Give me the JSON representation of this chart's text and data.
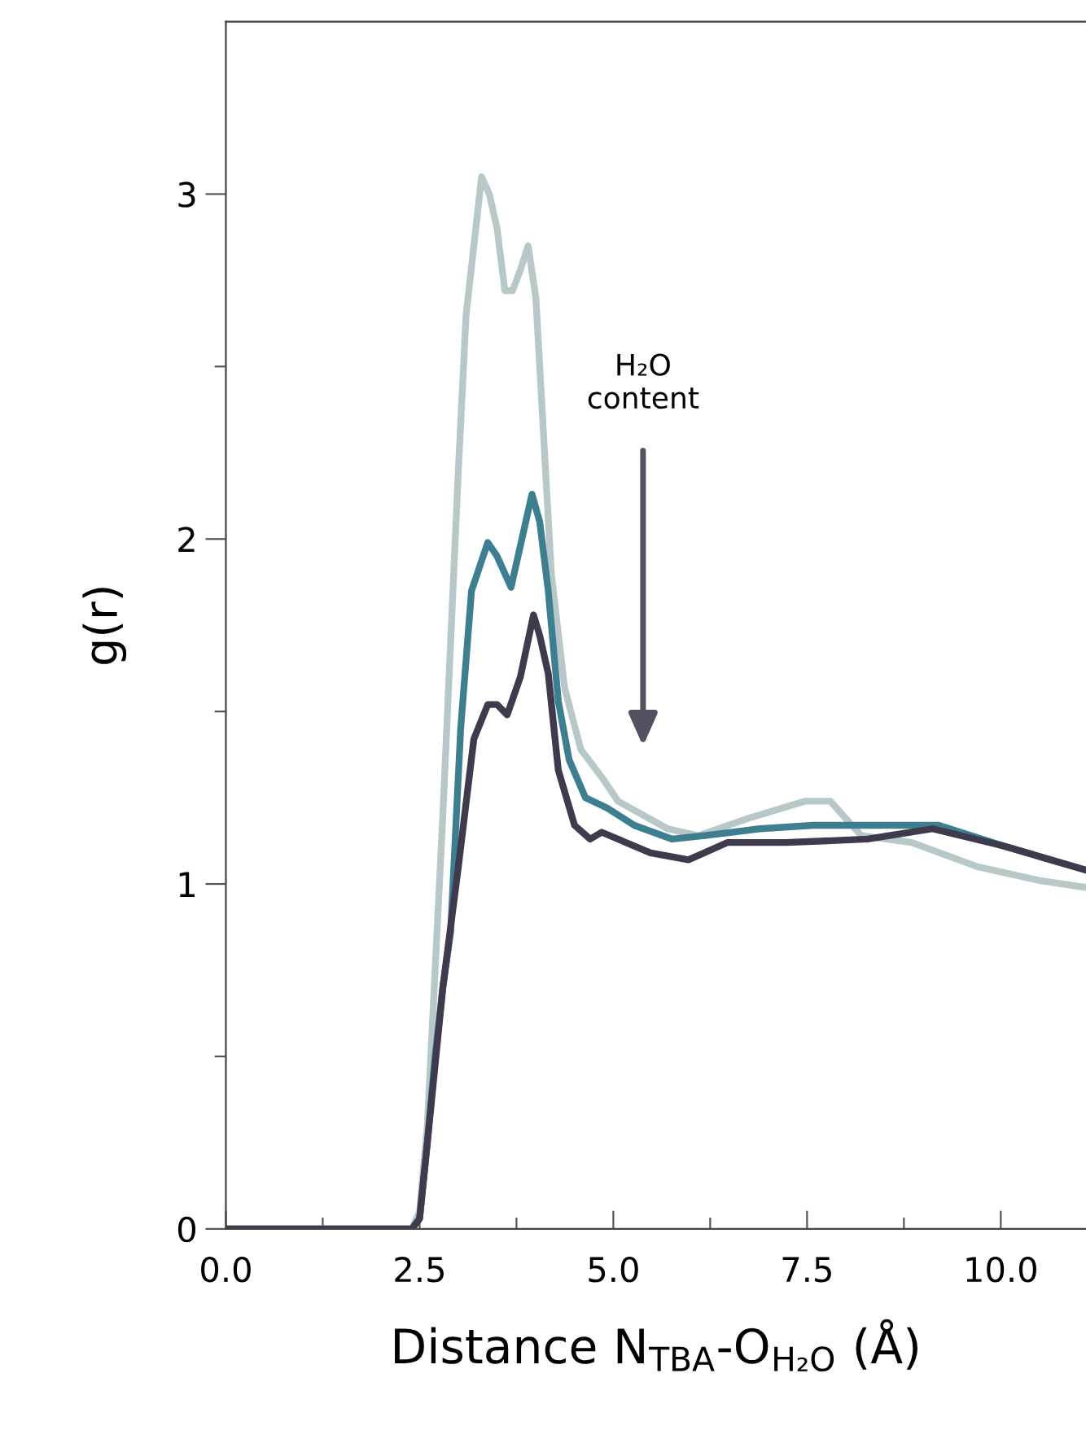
{
  "chart_data": {
    "type": "line",
    "xlabel": "Distance N$_{TBA}$-O$_{H₂O}$ (Å)",
    "ylabel": "g(r)",
    "annotations": [
      "H₂O\ncontent"
    ],
    "xlim": [
      0,
      11.1
    ],
    "ylim": [
      0,
      3.5
    ],
    "xticks": [
      {
        "value": 0,
        "label": "0.0"
      },
      {
        "value": 1.25,
        "label": null
      },
      {
        "value": 2.5,
        "label": "2.5"
      },
      {
        "value": 3.75,
        "label": null
      },
      {
        "value": 5,
        "label": "5.0"
      },
      {
        "value": 6.25,
        "label": null
      },
      {
        "value": 7.5,
        "label": "7.5"
      },
      {
        "value": 8.75,
        "label": null
      },
      {
        "value": 10,
        "label": "10.0"
      }
    ],
    "yticks": [
      0,
      {
        "value": 0.5,
        "label": null
      },
      1,
      {
        "value": 1.5,
        "label": null
      },
      2,
      {
        "value": 2.5,
        "label": null
      },
      3
    ],
    "grid": false,
    "legend": false,
    "marker": "none",
    "line_style": "solid",
    "series": [
      {
        "color": "#b8c8c8",
        "x": [
          0,
          1.0,
          2.0,
          2.4,
          2.5,
          2.6,
          2.7,
          2.8,
          2.9,
          3.0,
          3.1,
          3.2,
          3.3,
          3.4,
          3.5,
          3.6,
          3.7,
          3.8,
          3.9,
          4.0,
          4.1,
          4.2,
          4.37,
          4.58,
          4.85,
          5.06,
          5.7,
          6.1,
          6.74,
          7.48,
          7.8,
          8.2,
          8.85,
          9.7,
          10.5,
          11.1
        ],
        "values": [
          0,
          0,
          0,
          0,
          0.05,
          0.3,
          0.75,
          1.2,
          1.7,
          2.2,
          2.65,
          2.85,
          3.05,
          3.0,
          2.9,
          2.72,
          2.72,
          2.78,
          2.85,
          2.7,
          2.3,
          1.9,
          1.57,
          1.39,
          1.31,
          1.24,
          1.16,
          1.14,
          1.19,
          1.24,
          1.24,
          1.14,
          1.12,
          1.05,
          1.01,
          0.99
        ]
      },
      {
        "color": "#3d7f91",
        "x": [
          0,
          1.0,
          2.0,
          2.4,
          2.5,
          2.6,
          2.7,
          2.8,
          2.9,
          3.03,
          3.17,
          3.38,
          3.5,
          3.68,
          3.8,
          3.95,
          4.05,
          4.16,
          4.29,
          4.43,
          4.64,
          4.92,
          5.27,
          5.76,
          6.18,
          6.89,
          7.58,
          8.28,
          9.2,
          10.04,
          11.1
        ],
        "values": [
          0,
          0,
          0,
          0,
          0.03,
          0.25,
          0.5,
          0.7,
          0.86,
          1.45,
          1.85,
          1.99,
          1.95,
          1.86,
          1.98,
          2.13,
          2.05,
          1.85,
          1.53,
          1.36,
          1.25,
          1.22,
          1.17,
          1.13,
          1.14,
          1.16,
          1.17,
          1.17,
          1.17,
          1.11,
          1.04
        ]
      },
      {
        "color": "#3f3a4e",
        "x": [
          0,
          1.0,
          2.0,
          2.4,
          2.5,
          2.6,
          2.8,
          3.0,
          3.2,
          3.38,
          3.5,
          3.63,
          3.8,
          3.97,
          4.05,
          4.16,
          4.29,
          4.5,
          4.7,
          4.85,
          5.48,
          5.97,
          6.47,
          7.23,
          8.28,
          9.12,
          10.04,
          11.1
        ],
        "values": [
          0,
          0,
          0,
          0,
          0.03,
          0.25,
          0.7,
          1.05,
          1.42,
          1.52,
          1.52,
          1.49,
          1.6,
          1.78,
          1.72,
          1.61,
          1.33,
          1.17,
          1.13,
          1.15,
          1.09,
          1.07,
          1.12,
          1.12,
          1.13,
          1.16,
          1.11,
          1.04
        ]
      }
    ]
  }
}
